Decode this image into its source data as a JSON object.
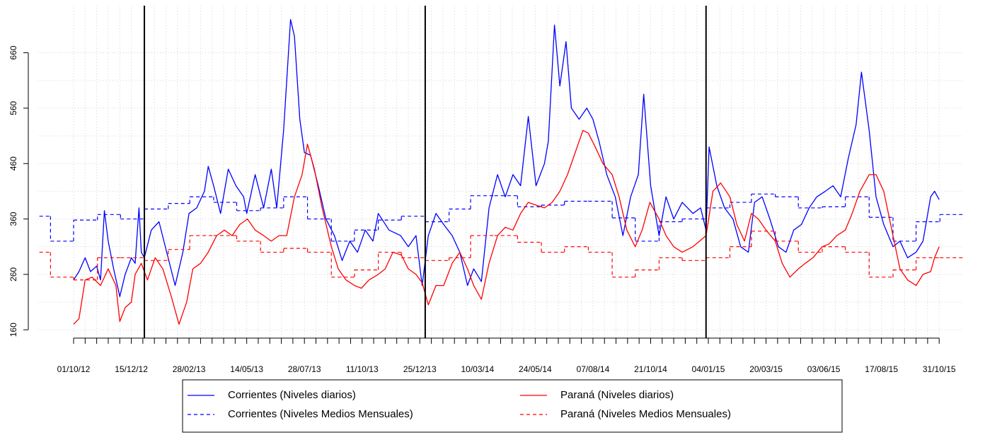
{
  "chart_data": {
    "type": "line",
    "xlim": [
      "2012-08-16",
      "2015-12-02"
    ],
    "ylim": [
      145,
      745
    ],
    "yticks": [
      160,
      260,
      360,
      460,
      560,
      660
    ],
    "xticks": [
      {
        "value": "2012-10-01",
        "label": "01/10/12"
      },
      {
        "value": "2012-12-15",
        "label": "15/12/12"
      },
      {
        "value": "2013-02-28",
        "label": "28/02/13"
      },
      {
        "value": "2013-05-14",
        "label": "14/05/13"
      },
      {
        "value": "2013-07-28",
        "label": "28/07/13"
      },
      {
        "value": "2013-10-11",
        "label": "11/10/13"
      },
      {
        "value": "2013-12-25",
        "label": "25/12/13"
      },
      {
        "value": "2014-03-10",
        "label": "10/03/14"
      },
      {
        "value": "2014-05-24",
        "label": "24/05/14"
      },
      {
        "value": "2014-08-07",
        "label": "07/08/14"
      },
      {
        "value": "2014-10-21",
        "label": "21/10/14"
      },
      {
        "value": "2015-01-04",
        "label": "04/01/15"
      },
      {
        "value": "2015-03-20",
        "label": "20/03/15"
      },
      {
        "value": "2015-06-03",
        "label": "03/06/15"
      },
      {
        "value": "2015-08-17",
        "label": "17/08/15"
      },
      {
        "value": "2015-10-31",
        "label": "31/10/15"
      }
    ],
    "grid": true,
    "vlines": [
      "2013-01-01",
      "2014-01-01",
      "2015-01-01"
    ],
    "legend": "bottom",
    "series": [
      {
        "name": "Corrientes (Niveles diarios)",
        "color": "#0000ff",
        "linestyle": "solid",
        "step": false,
        "x": [
          "2012-10-01",
          "2012-10-08",
          "2012-10-16",
          "2012-10-23",
          "2012-10-31",
          "2012-11-05",
          "2012-11-10",
          "2012-11-15",
          "2012-11-22",
          "2012-11-30",
          "2012-12-07",
          "2012-12-15",
          "2012-12-20",
          "2012-12-25",
          "2012-12-28",
          "2013-01-01",
          "2013-01-10",
          "2013-01-20",
          "2013-01-30",
          "2013-02-10",
          "2013-02-20",
          "2013-02-28",
          "2013-03-10",
          "2013-03-20",
          "2013-03-25",
          "2013-04-01",
          "2013-04-10",
          "2013-04-20",
          "2013-04-30",
          "2013-05-10",
          "2013-05-14",
          "2013-05-25",
          "2013-06-05",
          "2013-06-15",
          "2013-06-22",
          "2013-07-01",
          "2013-07-10",
          "2013-07-15",
          "2013-07-22",
          "2013-07-28",
          "2013-08-05",
          "2013-08-15",
          "2013-08-25",
          "2013-09-05",
          "2013-09-15",
          "2013-09-25",
          "2013-10-05",
          "2013-10-15",
          "2013-10-25",
          "2013-11-01",
          "2013-11-15",
          "2013-11-30",
          "2013-12-10",
          "2013-12-20",
          "2013-12-28",
          "2014-01-05",
          "2014-01-15",
          "2014-01-25",
          "2014-02-05",
          "2014-02-15",
          "2014-02-25",
          "2014-03-05",
          "2014-03-15",
          "2014-03-25",
          "2014-04-05",
          "2014-04-15",
          "2014-04-25",
          "2014-05-05",
          "2014-05-15",
          "2014-05-25",
          "2014-06-05",
          "2014-06-10",
          "2014-06-18",
          "2014-06-25",
          "2014-07-03",
          "2014-07-10",
          "2014-07-20",
          "2014-07-30",
          "2014-08-07",
          "2014-08-15",
          "2014-08-25",
          "2014-09-05",
          "2014-09-15",
          "2014-09-25",
          "2014-10-05",
          "2014-10-12",
          "2014-10-21",
          "2014-11-01",
          "2014-11-10",
          "2014-11-20",
          "2014-12-01",
          "2014-12-15",
          "2014-12-25",
          "2015-01-01",
          "2015-01-05",
          "2015-01-15",
          "2015-01-25",
          "2015-02-05",
          "2015-02-15",
          "2015-02-25",
          "2015-03-05",
          "2015-03-15",
          "2015-03-25",
          "2015-04-05",
          "2015-04-15",
          "2015-04-25",
          "2015-05-05",
          "2015-05-15",
          "2015-05-25",
          "2015-06-05",
          "2015-06-15",
          "2015-06-25",
          "2015-07-05",
          "2015-07-15",
          "2015-07-22",
          "2015-08-01",
          "2015-08-10",
          "2015-08-20",
          "2015-09-01",
          "2015-09-10",
          "2015-09-20",
          "2015-10-01",
          "2015-10-10",
          "2015-10-20",
          "2015-10-25",
          "2015-10-31"
        ],
        "values": [
          250,
          265,
          290,
          265,
          275,
          250,
          375,
          320,
          270,
          220,
          260,
          290,
          280,
          380,
          300,
          290,
          340,
          355,
          300,
          240,
          300,
          370,
          380,
          410,
          455,
          420,
          370,
          450,
          420,
          400,
          370,
          440,
          380,
          450,
          380,
          520,
          720,
          690,
          540,
          480,
          475,
          420,
          360,
          330,
          285,
          320,
          300,
          340,
          320,
          370,
          340,
          330,
          310,
          330,
          240,
          330,
          370,
          350,
          330,
          300,
          240,
          270,
          247,
          380,
          440,
          400,
          440,
          420,
          545,
          420,
          460,
          500,
          710,
          600,
          680,
          560,
          540,
          560,
          540,
          500,
          440,
          400,
          330,
          400,
          440,
          585,
          420,
          330,
          400,
          360,
          390,
          370,
          380,
          340,
          490,
          420,
          380,
          360,
          310,
          300,
          390,
          400,
          360,
          310,
          300,
          340,
          350,
          380,
          400,
          410,
          420,
          400,
          470,
          530,
          625,
          520,
          400,
          350,
          310,
          320,
          290,
          300,
          320,
          400,
          410,
          395
        ]
      },
      {
        "name": "Corrientes (Niveles Medios Mensuales)",
        "color": "#0000ff",
        "linestyle": "dashed",
        "step": true,
        "x": [
          "2012-08-01",
          "2012-09-01",
          "2012-10-01",
          "2012-11-01",
          "2012-12-01",
          "2013-01-01",
          "2013-02-01",
          "2013-03-01",
          "2013-04-01",
          "2013-05-01",
          "2013-06-01",
          "2013-07-01",
          "2013-08-01",
          "2013-09-01",
          "2013-10-01",
          "2013-11-01",
          "2013-12-01",
          "2014-01-01",
          "2014-02-01",
          "2014-03-01",
          "2014-04-01",
          "2014-05-01",
          "2014-06-01",
          "2014-07-01",
          "2014-08-01",
          "2014-09-01",
          "2014-10-01",
          "2014-11-01",
          "2014-12-01",
          "2015-01-01",
          "2015-02-01",
          "2015-03-01",
          "2015-04-01",
          "2015-05-01",
          "2015-06-01",
          "2015-07-01",
          "2015-08-01",
          "2015-09-01",
          "2015-10-01",
          "2015-11-01"
        ],
        "values": [
          365,
          320,
          358,
          368,
          360,
          378,
          388,
          400,
          390,
          375,
          380,
          400,
          360,
          320,
          340,
          358,
          365,
          355,
          378,
          402,
          402,
          382,
          385,
          392,
          392,
          362,
          320,
          355,
          360,
          380,
          390,
          405,
          400,
          380,
          382,
          400,
          363,
          320,
          355,
          368
        ]
      },
      {
        "name": "Paraná (Niveles diarios)",
        "color": "#ff0000",
        "linestyle": "solid",
        "step": false,
        "x": [
          "2012-10-01",
          "2012-10-08",
          "2012-10-16",
          "2012-10-25",
          "2012-11-05",
          "2012-11-15",
          "2012-11-25",
          "2012-11-30",
          "2012-12-07",
          "2012-12-15",
          "2012-12-20",
          "2012-12-28",
          "2013-01-05",
          "2013-01-15",
          "2013-01-25",
          "2013-02-05",
          "2013-02-15",
          "2013-02-25",
          "2013-03-05",
          "2013-03-15",
          "2013-03-25",
          "2013-04-05",
          "2013-04-15",
          "2013-04-25",
          "2013-05-05",
          "2013-05-15",
          "2013-05-25",
          "2013-06-05",
          "2013-06-15",
          "2013-06-25",
          "2013-07-05",
          "2013-07-15",
          "2013-07-25",
          "2013-08-01",
          "2013-08-10",
          "2013-08-20",
          "2013-09-01",
          "2013-09-10",
          "2013-09-20",
          "2013-10-01",
          "2013-10-10",
          "2013-10-20",
          "2013-11-01",
          "2013-11-10",
          "2013-11-20",
          "2013-12-01",
          "2013-12-10",
          "2013-12-20",
          "2013-12-28",
          "2014-01-05",
          "2014-01-15",
          "2014-01-25",
          "2014-02-05",
          "2014-02-15",
          "2014-02-25",
          "2014-03-05",
          "2014-03-15",
          "2014-03-25",
          "2014-04-05",
          "2014-04-15",
          "2014-04-25",
          "2014-05-05",
          "2014-05-15",
          "2014-05-25",
          "2014-06-05",
          "2014-06-15",
          "2014-06-25",
          "2014-07-05",
          "2014-07-15",
          "2014-07-25",
          "2014-08-01",
          "2014-08-10",
          "2014-08-20",
          "2014-09-01",
          "2014-09-10",
          "2014-09-20",
          "2014-10-01",
          "2014-10-10",
          "2014-10-20",
          "2014-11-01",
          "2014-11-10",
          "2014-11-20",
          "2014-12-01",
          "2014-12-15",
          "2015-01-01",
          "2015-01-10",
          "2015-01-20",
          "2015-02-01",
          "2015-02-10",
          "2015-02-20",
          "2015-03-01",
          "2015-03-10",
          "2015-03-20",
          "2015-04-01",
          "2015-04-10",
          "2015-04-20",
          "2015-05-01",
          "2015-05-10",
          "2015-05-20",
          "2015-06-01",
          "2015-06-10",
          "2015-06-20",
          "2015-07-01",
          "2015-07-10",
          "2015-07-20",
          "2015-08-01",
          "2015-08-10",
          "2015-08-20",
          "2015-09-01",
          "2015-09-10",
          "2015-09-20",
          "2015-10-01",
          "2015-10-10",
          "2015-10-20",
          "2015-10-25",
          "2015-10-31"
        ],
        "values": [
          170,
          180,
          250,
          255,
          240,
          270,
          240,
          175,
          200,
          210,
          260,
          280,
          250,
          290,
          270,
          220,
          170,
          210,
          270,
          280,
          300,
          330,
          340,
          330,
          350,
          360,
          340,
          330,
          320,
          330,
          330,
          400,
          440,
          495,
          450,
          380,
          310,
          270,
          250,
          240,
          235,
          250,
          260,
          270,
          300,
          295,
          270,
          260,
          245,
          205,
          240,
          240,
          280,
          300,
          270,
          240,
          215,
          280,
          330,
          345,
          340,
          370,
          390,
          385,
          380,
          390,
          410,
          440,
          480,
          520,
          515,
          490,
          460,
          440,
          400,
          340,
          310,
          340,
          390,
          360,
          330,
          310,
          300,
          310,
          330,
          410,
          425,
          400,
          350,
          320,
          370,
          360,
          340,
          320,
          280,
          255,
          270,
          280,
          290,
          310,
          315,
          330,
          340,
          370,
          410,
          440,
          440,
          410,
          330,
          270,
          250,
          240,
          260,
          265,
          290,
          310
        ]
      },
      {
        "name": "Paraná (Niveles Medios Mensuales)",
        "color": "#ff0000",
        "linestyle": "dashed",
        "step": true,
        "x": [
          "2012-08-01",
          "2012-09-01",
          "2012-10-01",
          "2012-11-01",
          "2012-12-01",
          "2013-01-01",
          "2013-02-01",
          "2013-03-01",
          "2013-04-01",
          "2013-05-01",
          "2013-06-01",
          "2013-07-01",
          "2013-08-01",
          "2013-09-01",
          "2013-10-01",
          "2013-11-01",
          "2013-12-01",
          "2014-01-01",
          "2014-02-01",
          "2014-03-01",
          "2014-04-01",
          "2014-05-01",
          "2014-06-01",
          "2014-07-01",
          "2014-08-01",
          "2014-09-01",
          "2014-10-01",
          "2014-11-01",
          "2014-12-01",
          "2015-01-01",
          "2015-02-01",
          "2015-03-01",
          "2015-04-01",
          "2015-05-01",
          "2015-06-01",
          "2015-07-01",
          "2015-08-01",
          "2015-09-01",
          "2015-10-01",
          "2015-11-01"
        ],
        "values": [
          300,
          255,
          250,
          290,
          290,
          285,
          305,
          330,
          330,
          320,
          300,
          307,
          300,
          255,
          268,
          300,
          290,
          285,
          290,
          330,
          330,
          318,
          300,
          310,
          300,
          255,
          268,
          290,
          285,
          290,
          310,
          338,
          320,
          300,
          310,
          300,
          255,
          268,
          290,
          290
        ]
      }
    ]
  }
}
